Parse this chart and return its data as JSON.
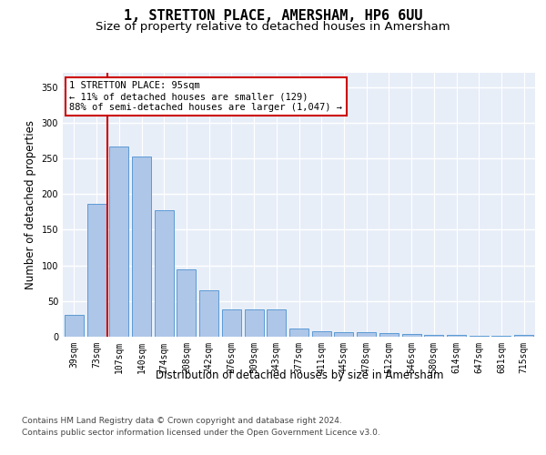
{
  "title": "1, STRETTON PLACE, AMERSHAM, HP6 6UU",
  "subtitle": "Size of property relative to detached houses in Amersham",
  "xlabel": "Distribution of detached houses by size in Amersham",
  "ylabel": "Number of detached properties",
  "categories": [
    "39sqm",
    "73sqm",
    "107sqm",
    "140sqm",
    "174sqm",
    "208sqm",
    "242sqm",
    "276sqm",
    "309sqm",
    "343sqm",
    "377sqm",
    "411sqm",
    "445sqm",
    "478sqm",
    "512sqm",
    "546sqm",
    "580sqm",
    "614sqm",
    "647sqm",
    "681sqm",
    "715sqm"
  ],
  "values": [
    30,
    186,
    267,
    253,
    177,
    95,
    65,
    38,
    38,
    38,
    12,
    8,
    7,
    7,
    5,
    4,
    3,
    3,
    1,
    1,
    3
  ],
  "bar_color": "#aec6e8",
  "bar_edge_color": "#5b9bd5",
  "property_line_label": "1 STRETTON PLACE: 95sqm",
  "annotation_line1": "← 11% of detached houses are smaller (129)",
  "annotation_line2": "88% of semi-detached houses are larger (1,047) →",
  "ylim": [
    0,
    370
  ],
  "yticks": [
    0,
    50,
    100,
    150,
    200,
    250,
    300,
    350
  ],
  "plot_bg_color": "#e8eef8",
  "red_line_color": "#cc0000",
  "title_fontsize": 11,
  "subtitle_fontsize": 9.5,
  "axis_label_fontsize": 8.5,
  "tick_fontsize": 7,
  "footer_fontsize": 6.5,
  "annotation_fontsize": 7.5
}
